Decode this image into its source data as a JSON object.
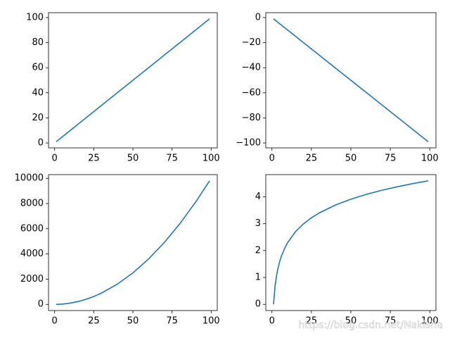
{
  "chart_data": [
    {
      "type": "line",
      "color": "#1f77b4",
      "x": [
        1,
        2,
        3,
        4,
        5,
        6,
        8,
        10,
        15,
        20,
        25,
        30,
        40,
        50,
        60,
        70,
        80,
        90,
        99
      ],
      "values": [
        1,
        2,
        3,
        4,
        5,
        6,
        8,
        10,
        15,
        20,
        25,
        30,
        40,
        50,
        60,
        70,
        80,
        90,
        99
      ],
      "xlim": [
        -3.9,
        103.9
      ],
      "xticks": [
        0,
        25,
        50,
        75,
        100
      ],
      "ylim": [
        -3.9,
        103.9
      ],
      "yticks": [
        0,
        20,
        40,
        60,
        80,
        100
      ]
    },
    {
      "type": "line",
      "color": "#1f77b4",
      "x": [
        1,
        2,
        3,
        4,
        5,
        6,
        8,
        10,
        15,
        20,
        25,
        30,
        40,
        50,
        60,
        70,
        80,
        90,
        99
      ],
      "values": [
        -1,
        -2,
        -3,
        -4,
        -5,
        -6,
        -8,
        -10,
        -15,
        -20,
        -25,
        -30,
        -40,
        -50,
        -60,
        -70,
        -80,
        -90,
        -99
      ],
      "xlim": [
        -3.9,
        103.9
      ],
      "xticks": [
        0,
        25,
        50,
        75,
        100
      ],
      "ylim": [
        -103.9,
        3.9
      ],
      "yticks": [
        0,
        {
          "value": -20,
          "label": "−20"
        },
        {
          "value": -40,
          "label": "−40"
        },
        {
          "value": -60,
          "label": "−60"
        },
        {
          "value": -80,
          "label": "−80"
        },
        {
          "value": -100,
          "label": "−100"
        }
      ]
    },
    {
      "type": "line",
      "color": "#1f77b4",
      "x": [
        1,
        2,
        3,
        4,
        5,
        6,
        8,
        10,
        15,
        20,
        25,
        30,
        40,
        50,
        60,
        70,
        80,
        90,
        99
      ],
      "values": [
        1,
        4,
        9,
        16,
        25,
        36,
        64,
        100,
        225,
        400,
        625,
        900,
        1600,
        2500,
        3600,
        4900,
        6400,
        8100,
        9801
      ],
      "xlim": [
        -3.9,
        103.9
      ],
      "xticks": [
        0,
        25,
        50,
        75,
        100
      ],
      "ylim": [
        -489,
        10291
      ],
      "yticks": [
        0,
        2000,
        4000,
        6000,
        8000,
        10000
      ]
    },
    {
      "type": "line",
      "color": "#1f77b4",
      "x": [
        1,
        2,
        3,
        4,
        5,
        6,
        8,
        10,
        15,
        20,
        25,
        30,
        40,
        50,
        60,
        70,
        80,
        90,
        99
      ],
      "values": [
        0,
        0.693,
        1.099,
        1.386,
        1.609,
        1.792,
        2.079,
        2.303,
        2.708,
        2.996,
        3.219,
        3.401,
        3.689,
        3.912,
        4.094,
        4.248,
        4.382,
        4.5,
        4.595
      ],
      "xlim": [
        -3.9,
        103.9
      ],
      "xticks": [
        0,
        25,
        50,
        75,
        100
      ],
      "ylim": [
        -0.23,
        4.825
      ],
      "yticks": [
        0,
        1,
        2,
        3,
        4
      ]
    }
  ],
  "watermark": "https://blog.csdn.net/Nakisha"
}
